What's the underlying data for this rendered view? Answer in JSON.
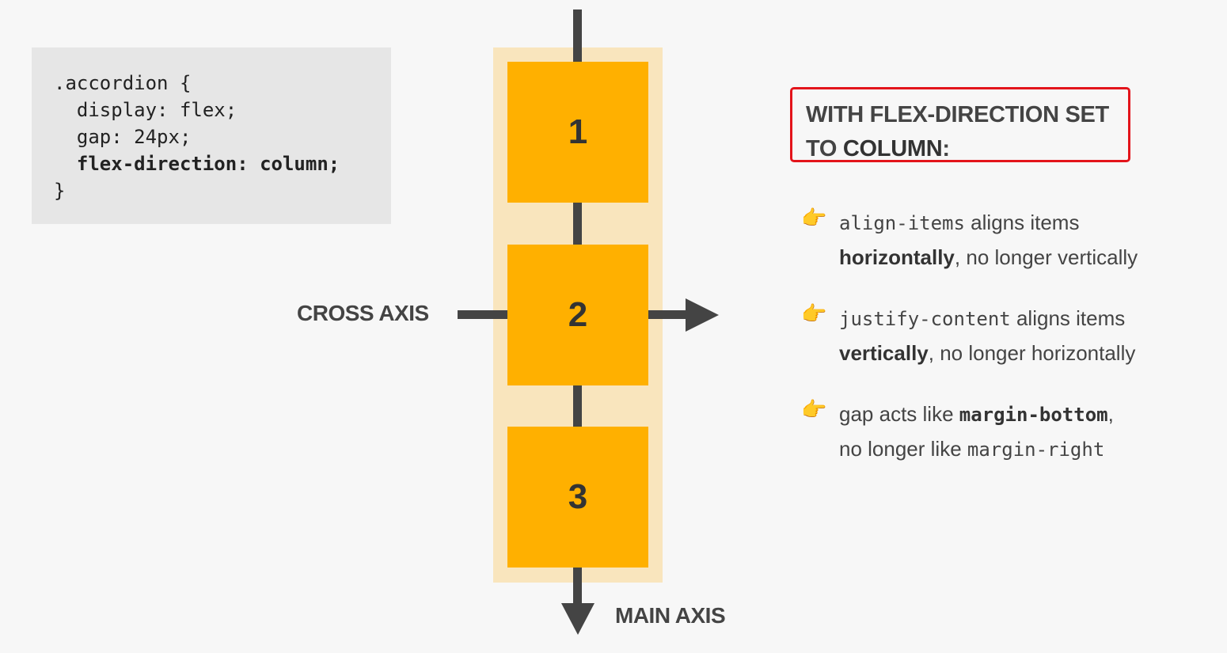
{
  "code": {
    "line1": ".accordion {",
    "line2": "  display: flex;",
    "line3": "  gap: 24px;",
    "line4": "  flex-direction: column;",
    "line5": "}"
  },
  "items": [
    "1",
    "2",
    "3"
  ],
  "axes": {
    "cross_label": "CROSS AXIS",
    "main_label": "MAIN AXIS"
  },
  "title": {
    "line1": "WITH FLEX-DIRECTION SET",
    "line2_prefix": "TO ",
    "line2_strong": "COLUMN",
    "line2_suffix": ":"
  },
  "bullets": {
    "hand_icon": "👉",
    "b1": {
      "code": "align-items",
      "text1": " aligns items",
      "strong": "horizontally",
      "text2": ", no longer vertically"
    },
    "b2": {
      "code": "justify-content",
      "text1": " aligns items",
      "strong": "vertically",
      "text2": ", no longer horizontally"
    },
    "b3": {
      "text1": "gap acts like ",
      "code_strong": "margin-bottom",
      "text2": ",",
      "text3": "no longer like ",
      "code": "margin-right"
    }
  },
  "colors": {
    "item": "#ffb000",
    "container": "#f9e5bd",
    "axis": "#444444",
    "highlight_border": "#e3141b"
  }
}
